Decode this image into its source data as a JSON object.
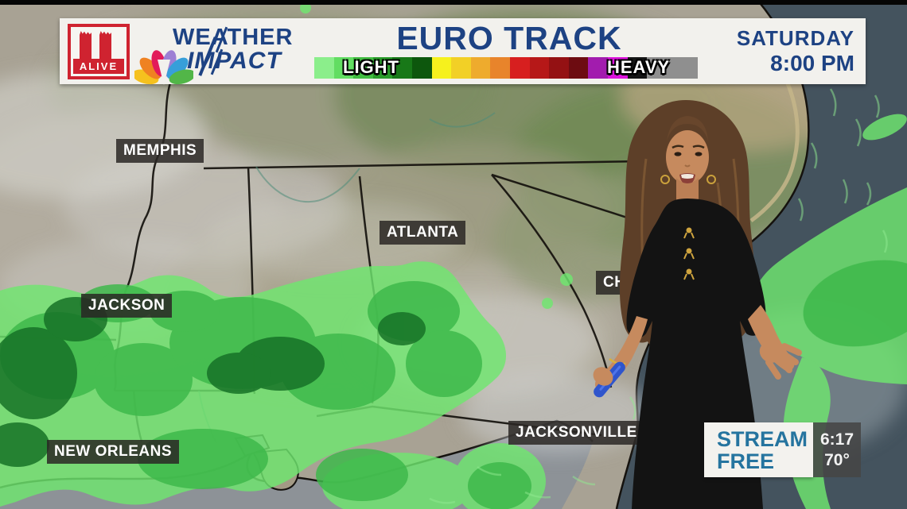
{
  "top_bar": {
    "station_logo": {
      "number": "11",
      "name": "ALIVE"
    },
    "brand": {
      "line1": "WEATHER",
      "line2": "IMPACT"
    },
    "title": "EURO TRACK",
    "legend": {
      "light_label": "LIGHT",
      "heavy_label": "HEAVY",
      "colors": [
        "#8bee8b",
        "#62dd62",
        "#41bc41",
        "#2a9c2a",
        "#187818",
        "#0d570d",
        "#f6f11d",
        "#f2d026",
        "#eeab2d",
        "#e8842b",
        "#d71f1f",
        "#b61818",
        "#941113",
        "#6d0c11",
        "#a21cae",
        "#dc13dc",
        "#151515",
        "#8f8f8f"
      ]
    },
    "valid_time": {
      "day": "SATURDAY",
      "time": "8:00 PM"
    }
  },
  "map": {
    "cities": [
      {
        "name": "MEMPHIS"
      },
      {
        "name": "ATLANTA"
      },
      {
        "name": "JACKSON"
      },
      {
        "name": "CH"
      },
      {
        "name": "NEW ORLEANS"
      },
      {
        "name": "JACKSONVILLE"
      }
    ],
    "precip_colors": {
      "light": "#6fe76f",
      "medium": "#3eb94b",
      "heavy": "#177227"
    }
  },
  "bottom_right": {
    "stream_promo": {
      "line1": "STREAM",
      "line2": "FREE",
      "color": "#25749f"
    },
    "clock": {
      "time": "6:17",
      "temperature": "70°"
    }
  },
  "colors": {
    "navy": "#1d4283",
    "station_red": "#cf2330",
    "header_bg": "#f2f1ed"
  }
}
